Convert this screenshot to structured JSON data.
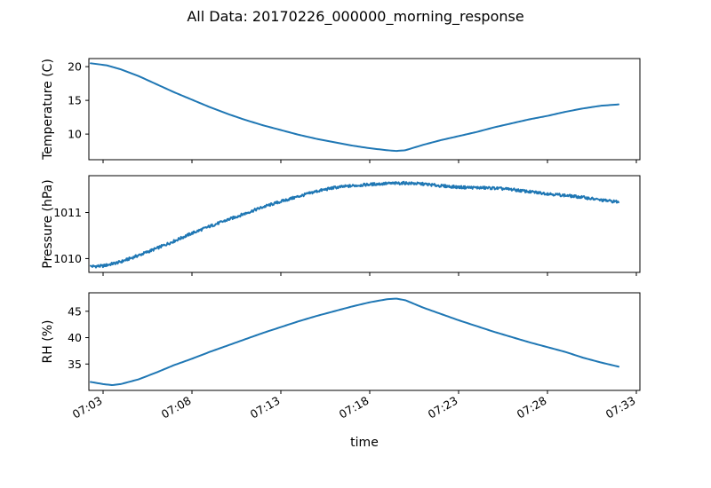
{
  "figure_title": "All Data: 20170226_000000_morning_response",
  "chart_data": [
    {
      "type": "line",
      "title": "",
      "xlabel": "",
      "ylabel": "Temperature (C)",
      "x_tick_labels_shown": false,
      "x_unit": "minutes after 07:00",
      "xlim": [
        2.2,
        33.2
      ],
      "ylim": [
        6.2,
        21.2
      ],
      "yticks": [
        10,
        15,
        20
      ],
      "ytick_labels": [
        "10",
        "15",
        "20"
      ],
      "grid": false,
      "color": "#1f77b4",
      "series": [
        {
          "x": [
            2.3,
            3.2,
            4.0,
            5.0,
            6.0,
            7.0,
            8.0,
            9.0,
            10.0,
            11.0,
            12.0,
            13.0,
            14.0,
            15.0,
            16.0,
            17.0,
            18.0,
            19.0,
            19.5,
            20.0,
            21.0,
            22.0,
            23.0,
            24.0,
            25.0,
            26.0,
            27.0,
            28.0,
            29.0,
            30.0,
            31.0,
            32.0
          ],
          "y": [
            20.5,
            20.2,
            19.6,
            18.6,
            17.4,
            16.2,
            15.1,
            14.0,
            13.0,
            12.1,
            11.3,
            10.6,
            9.9,
            9.3,
            8.8,
            8.3,
            7.9,
            7.6,
            7.5,
            7.6,
            8.4,
            9.1,
            9.7,
            10.3,
            11.0,
            11.6,
            12.2,
            12.7,
            13.3,
            13.8,
            14.2,
            14.4
          ]
        }
      ]
    },
    {
      "type": "line",
      "title": "",
      "xlabel": "",
      "ylabel": "Pressure (hPa)",
      "x_tick_labels_shown": false,
      "x_unit": "minutes after 07:00",
      "xlim": [
        2.2,
        33.2
      ],
      "ylim": [
        1009.7,
        1011.8
      ],
      "yticks": [
        1010,
        1011
      ],
      "ytick_labels": [
        "1010",
        "1011"
      ],
      "grid": false,
      "color": "#1f77b4",
      "series": [
        {
          "x": [
            2.3,
            3.0,
            4.0,
            5.0,
            6.0,
            7.0,
            8.0,
            9.0,
            10.0,
            11.0,
            12.0,
            13.0,
            14.0,
            15.0,
            16.0,
            17.0,
            18.0,
            19.0,
            20.0,
            21.0,
            22.0,
            23.0,
            24.0,
            25.0,
            26.0,
            27.0,
            28.0,
            29.0,
            30.0,
            31.0,
            32.0
          ],
          "y": [
            1009.83,
            1009.84,
            1009.93,
            1010.07,
            1010.22,
            1010.38,
            1010.55,
            1010.7,
            1010.84,
            1010.98,
            1011.12,
            1011.24,
            1011.35,
            1011.46,
            1011.54,
            1011.58,
            1011.61,
            1011.63,
            1011.64,
            1011.62,
            1011.58,
            1011.55,
            1011.54,
            1011.53,
            1011.5,
            1011.45,
            1011.41,
            1011.37,
            1011.33,
            1011.27,
            1011.23
          ]
        }
      ]
    },
    {
      "type": "line",
      "title": "",
      "xlabel": "time",
      "ylabel": "RH (%)",
      "x_tick_labels_shown": true,
      "x_unit": "minutes after 07:00",
      "xlim": [
        2.2,
        33.2
      ],
      "xticks": [
        3,
        8,
        13,
        18,
        23,
        28,
        33
      ],
      "xtick_labels": [
        "07:03",
        "07:08",
        "07:13",
        "07:18",
        "07:23",
        "07:28",
        "07:33"
      ],
      "ylim": [
        30.0,
        48.5
      ],
      "yticks": [
        35,
        40,
        45
      ],
      "ytick_labels": [
        "35",
        "40",
        "45"
      ],
      "grid": false,
      "color": "#1f77b4",
      "series": [
        {
          "x": [
            2.3,
            3.0,
            3.5,
            4.0,
            5.0,
            6.0,
            7.0,
            8.0,
            9.0,
            10.0,
            11.0,
            12.0,
            13.0,
            14.0,
            15.0,
            16.0,
            17.0,
            18.0,
            19.0,
            19.5,
            20.0,
            21.0,
            22.0,
            23.0,
            24.0,
            25.0,
            26.0,
            27.0,
            28.0,
            29.0,
            30.0,
            31.0,
            32.0
          ],
          "y": [
            31.6,
            31.2,
            31.0,
            31.2,
            32.1,
            33.4,
            34.8,
            36.0,
            37.3,
            38.5,
            39.7,
            40.9,
            42.0,
            43.1,
            44.1,
            45.0,
            45.9,
            46.7,
            47.3,
            47.4,
            47.1,
            45.7,
            44.5,
            43.3,
            42.2,
            41.1,
            40.1,
            39.1,
            38.2,
            37.3,
            36.2,
            35.3,
            34.5
          ]
        }
      ]
    }
  ]
}
